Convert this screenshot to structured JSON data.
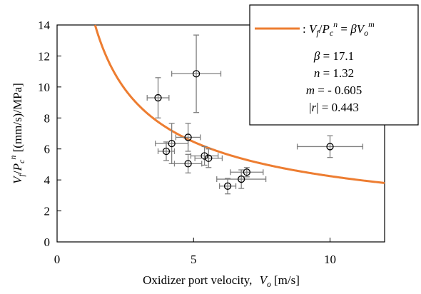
{
  "chart_data": {
    "type": "scatter",
    "xlabel": "Oxidizer  port velocity,",
    "xlabel_symbol": "V",
    "xlabel_subscript": "o",
    "xlabel_unit": "[m/s]",
    "ylabel_symbol_vf": "V",
    "ylabel_sub_f": "f",
    "ylabel_slash": "/",
    "ylabel_symbol_pc": "P",
    "ylabel_sub_c": "c",
    "ylabel_sup_n": "n",
    "ylabel_unit": " [(mm/s)/MPa]",
    "xlim": [
      0,
      12
    ],
    "ylim": [
      0,
      14
    ],
    "x_ticks": [
      0,
      5,
      10
    ],
    "y_ticks": [
      0,
      2,
      4,
      6,
      8,
      10,
      12,
      14
    ],
    "x_tick_labels": [
      "0",
      "5",
      "10"
    ],
    "y_tick_labels": [
      "0",
      "2",
      "4",
      "6",
      "8",
      "10",
      "12",
      "14"
    ],
    "grid": false,
    "legend_position": "top-right",
    "points": [
      {
        "x": 3.7,
        "y": 9.3,
        "xerr": 0.4,
        "yerr": 1.3
      },
      {
        "x": 5.1,
        "y": 10.85,
        "xerr": 0.9,
        "yerr": 2.5
      },
      {
        "x": 4.8,
        "y": 6.75,
        "xerr": 0.45,
        "yerr": 0.9
      },
      {
        "x": 4.2,
        "y": 6.35,
        "xerr": 0.6,
        "yerr": 1.3
      },
      {
        "x": 4.0,
        "y": 5.85,
        "xerr": 0.3,
        "yerr": 0.6
      },
      {
        "x": 4.8,
        "y": 5.05,
        "xerr": 0.5,
        "yerr": 0.6
      },
      {
        "x": 5.4,
        "y": 5.55,
        "xerr": 0.5,
        "yerr": 0.6
      },
      {
        "x": 5.55,
        "y": 5.4,
        "xerr": 0.5,
        "yerr": 0.6
      },
      {
        "x": 6.25,
        "y": 3.6,
        "xerr": 0.3,
        "yerr": 0.5
      },
      {
        "x": 6.75,
        "y": 4.05,
        "xerr": 0.9,
        "yerr": 0.6
      },
      {
        "x": 6.95,
        "y": 4.5,
        "xerr": 0.6,
        "yerr": 0.3
      },
      {
        "x": 10.0,
        "y": 6.15,
        "xerr": 1.2,
        "yerr": 0.7
      }
    ],
    "fit": {
      "beta": 17.1,
      "m": -0.605,
      "x_start": 1.4,
      "x_end": 12.0,
      "color": "#ED7D31"
    },
    "legend": {
      "line_color": "#ED7D31",
      "eq_prefix": ": ",
      "eq_vf": "V",
      "eq_sub_f": "f",
      "eq_slash": "/",
      "eq_pc": "P",
      "eq_sub_c": "c",
      "eq_sup_n": "n",
      "eq_equals": " = ",
      "eq_beta": "βV",
      "eq_sub_o": "o",
      "eq_sup_m": "m",
      "beta_line_sym": "β",
      "beta_line_val": " = 17.1",
      "n_line_sym": "n",
      "n_line_val": " = 1.32",
      "m_line_sym": "m",
      "m_line_val": " = - 0.605",
      "r_line_left": "|",
      "r_line_sym": "r",
      "r_line_val": "| = 0.443"
    }
  }
}
